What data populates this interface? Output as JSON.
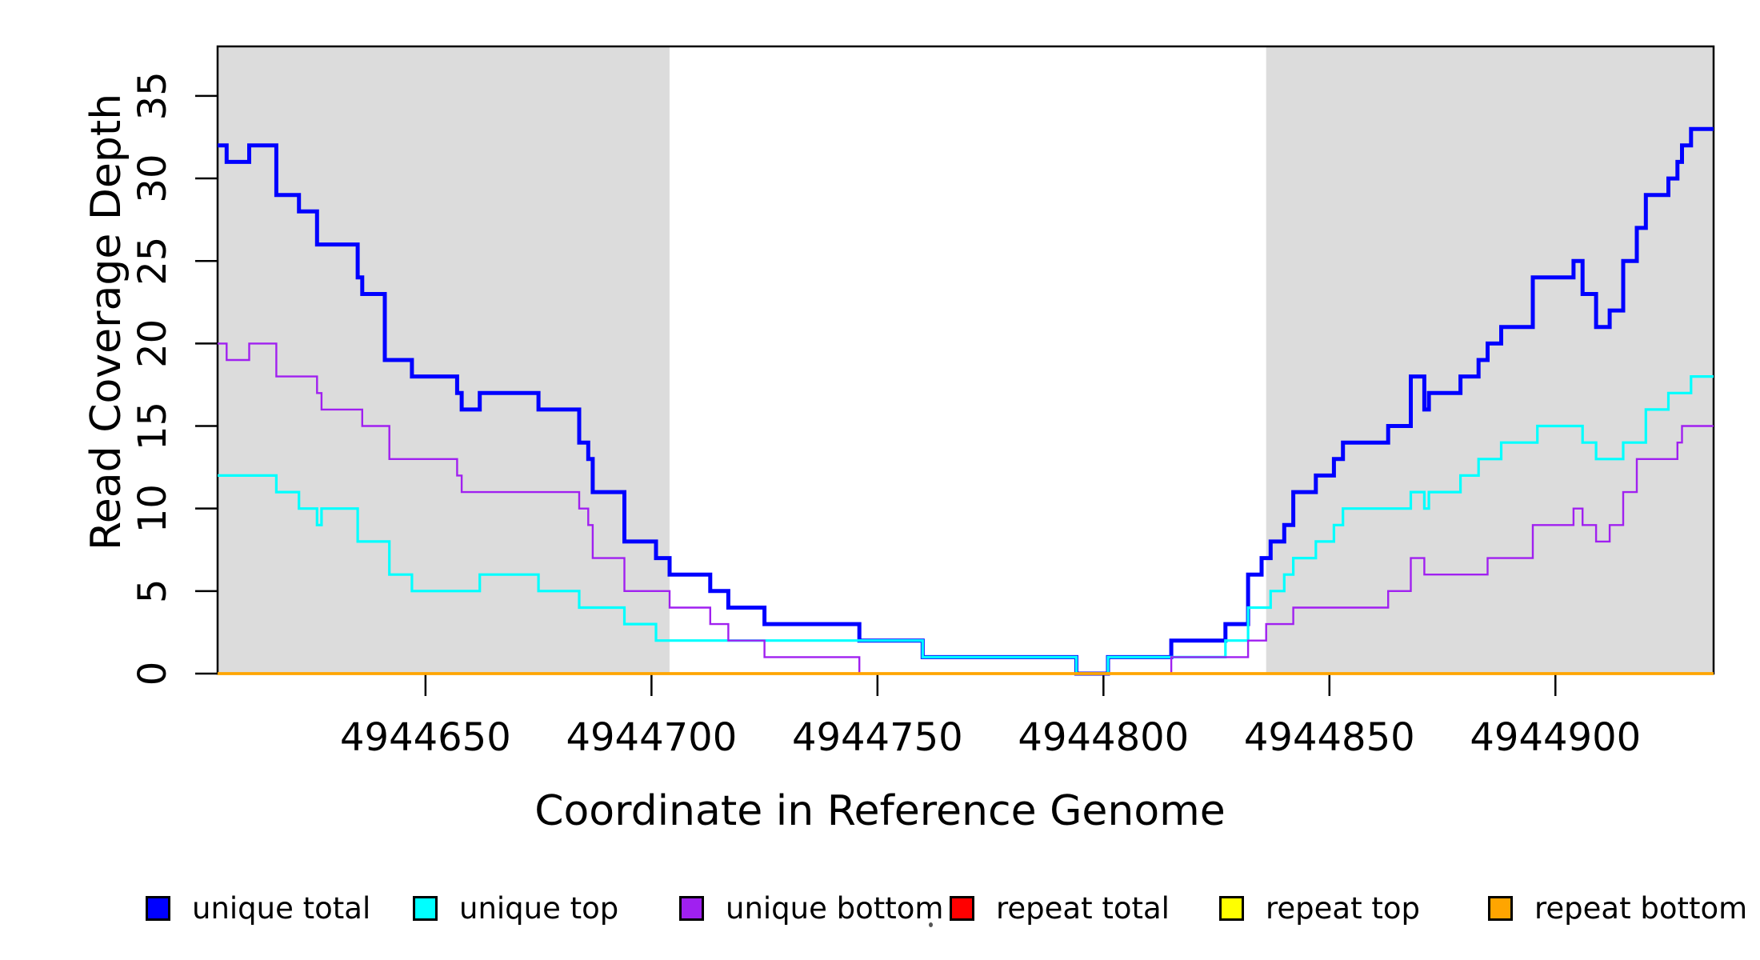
{
  "figure": {
    "y_axis_label": "Read Coverage Depth",
    "x_axis_label": "Coordinate in Reference Genome"
  },
  "legend": {
    "items": [
      {
        "key": "unique-total",
        "label": "unique total",
        "color": "#0000ff"
      },
      {
        "key": "unique-top",
        "label": "unique top",
        "color": "#00ffff"
      },
      {
        "key": "unique-bottom",
        "label": "unique bottom",
        "color": "#a020f0"
      },
      {
        "key": "repeat-total",
        "label": "repeat total",
        "color": "#ff0000"
      },
      {
        "key": "repeat-top",
        "label": "repeat top",
        "color": "#ffff00"
      },
      {
        "key": "repeat-bottom",
        "label": "repeat bottom",
        "color": "#ffa500"
      }
    ]
  },
  "chart_data": {
    "type": "line",
    "subtype": "step",
    "title": "",
    "xlabel": "Coordinate in Reference Genome",
    "ylabel": "Read Coverage Depth",
    "xlim": [
      4944604,
      4944935
    ],
    "ylim": [
      0,
      38
    ],
    "x_ticks": [
      4944650,
      4944700,
      4944750,
      4944800,
      4944850,
      4944900
    ],
    "y_ticks": [
      0,
      5,
      10,
      15,
      20,
      25,
      30,
      35
    ],
    "grid": false,
    "legend_position": "bottom",
    "shaded_regions": [
      {
        "from": 4944604,
        "to": 4944704,
        "color": "#dcdcdc"
      },
      {
        "from": 4944836,
        "to": 4944935,
        "color": "#dcdcdc"
      }
    ],
    "series": [
      {
        "name": "unique total",
        "color": "#0000ff",
        "stroke_width": 5,
        "points": [
          [
            4944604,
            32
          ],
          [
            4944606,
            31
          ],
          [
            4944611,
            32
          ],
          [
            4944617,
            29
          ],
          [
            4944622,
            28
          ],
          [
            4944626,
            26
          ],
          [
            4944635,
            24
          ],
          [
            4944636,
            23
          ],
          [
            4944641,
            19
          ],
          [
            4944647,
            18
          ],
          [
            4944657,
            17
          ],
          [
            4944658,
            16
          ],
          [
            4944662,
            17
          ],
          [
            4944675,
            16
          ],
          [
            4944684,
            14
          ],
          [
            4944686,
            13
          ],
          [
            4944687,
            11
          ],
          [
            4944694,
            8
          ],
          [
            4944701,
            7
          ],
          [
            4944704,
            6
          ],
          [
            4944713,
            5
          ],
          [
            4944717,
            4
          ],
          [
            4944725,
            3
          ],
          [
            4944746,
            2
          ],
          [
            4944760,
            1
          ],
          [
            4944794,
            0
          ],
          [
            4944801,
            1
          ],
          [
            4944815,
            2
          ],
          [
            4944827,
            3
          ],
          [
            4944832,
            6
          ],
          [
            4944835,
            7
          ],
          [
            4944837,
            8
          ],
          [
            4944840,
            9
          ],
          [
            4944842,
            11
          ],
          [
            4944847,
            12
          ],
          [
            4944851,
            13
          ],
          [
            4944853,
            14
          ],
          [
            4944863,
            15
          ],
          [
            4944868,
            18
          ],
          [
            4944871,
            16
          ],
          [
            4944872,
            17
          ],
          [
            4944879,
            18
          ],
          [
            4944883,
            19
          ],
          [
            4944885,
            20
          ],
          [
            4944888,
            21
          ],
          [
            4944895,
            24
          ],
          [
            4944904,
            25
          ],
          [
            4944906,
            23
          ],
          [
            4944909,
            21
          ],
          [
            4944912,
            22
          ],
          [
            4944915,
            25
          ],
          [
            4944918,
            27
          ],
          [
            4944920,
            29
          ],
          [
            4944925,
            30
          ],
          [
            4944927,
            31
          ],
          [
            4944928,
            32
          ],
          [
            4944930,
            33
          ],
          [
            4944935,
            33
          ]
        ]
      },
      {
        "name": "unique top",
        "color": "#00ffff",
        "stroke_width": 3.2,
        "points": [
          [
            4944604,
            12
          ],
          [
            4944617,
            11
          ],
          [
            4944622,
            10
          ],
          [
            4944626,
            9
          ],
          [
            4944627,
            10
          ],
          [
            4944635,
            8
          ],
          [
            4944642,
            6
          ],
          [
            4944647,
            5
          ],
          [
            4944662,
            6
          ],
          [
            4944675,
            5
          ],
          [
            4944684,
            4
          ],
          [
            4944694,
            3
          ],
          [
            4944701,
            2
          ],
          [
            4944760,
            1
          ],
          [
            4944794,
            0
          ],
          [
            4944801,
            1
          ],
          [
            4944827,
            2
          ],
          [
            4944832,
            4
          ],
          [
            4944837,
            5
          ],
          [
            4944840,
            6
          ],
          [
            4944842,
            7
          ],
          [
            4944847,
            8
          ],
          [
            4944851,
            9
          ],
          [
            4944853,
            10
          ],
          [
            4944868,
            11
          ],
          [
            4944871,
            10
          ],
          [
            4944872,
            11
          ],
          [
            4944879,
            12
          ],
          [
            4944883,
            13
          ],
          [
            4944888,
            14
          ],
          [
            4944896,
            15
          ],
          [
            4944906,
            14
          ],
          [
            4944909,
            13
          ],
          [
            4944915,
            14
          ],
          [
            4944920,
            16
          ],
          [
            4944925,
            17
          ],
          [
            4944930,
            18
          ],
          [
            4944935,
            18
          ]
        ]
      },
      {
        "name": "unique bottom",
        "color": "#a020f0",
        "stroke_width": 2.4,
        "points": [
          [
            4944604,
            20
          ],
          [
            4944606,
            19
          ],
          [
            4944611,
            20
          ],
          [
            4944617,
            18
          ],
          [
            4944626,
            17
          ],
          [
            4944627,
            16
          ],
          [
            4944636,
            15
          ],
          [
            4944642,
            13
          ],
          [
            4944657,
            12
          ],
          [
            4944658,
            11
          ],
          [
            4944684,
            10
          ],
          [
            4944686,
            9
          ],
          [
            4944687,
            7
          ],
          [
            4944694,
            5
          ],
          [
            4944704,
            4
          ],
          [
            4944713,
            3
          ],
          [
            4944717,
            2
          ],
          [
            4944725,
            1
          ],
          [
            4944746,
            0
          ],
          [
            4944815,
            1
          ],
          [
            4944832,
            2
          ],
          [
            4944836,
            3
          ],
          [
            4944842,
            4
          ],
          [
            4944863,
            5
          ],
          [
            4944868,
            7
          ],
          [
            4944871,
            6
          ],
          [
            4944885,
            7
          ],
          [
            4944895,
            9
          ],
          [
            4944904,
            10
          ],
          [
            4944906,
            9
          ],
          [
            4944909,
            8
          ],
          [
            4944912,
            9
          ],
          [
            4944915,
            11
          ],
          [
            4944918,
            13
          ],
          [
            4944927,
            14
          ],
          [
            4944928,
            15
          ],
          [
            4944935,
            15
          ]
        ]
      },
      {
        "name": "repeat total",
        "color": "#ff0000",
        "stroke_width": 3,
        "points": [
          [
            4944604,
            0
          ],
          [
            4944935,
            0
          ]
        ]
      },
      {
        "name": "repeat top",
        "color": "#ffff00",
        "stroke_width": 3,
        "points": [
          [
            4944604,
            0
          ],
          [
            4944935,
            0
          ]
        ]
      },
      {
        "name": "repeat bottom",
        "color": "#ffa500",
        "stroke_width": 3.8,
        "points": [
          [
            4944604,
            0
          ],
          [
            4944935,
            0
          ]
        ]
      }
    ]
  }
}
